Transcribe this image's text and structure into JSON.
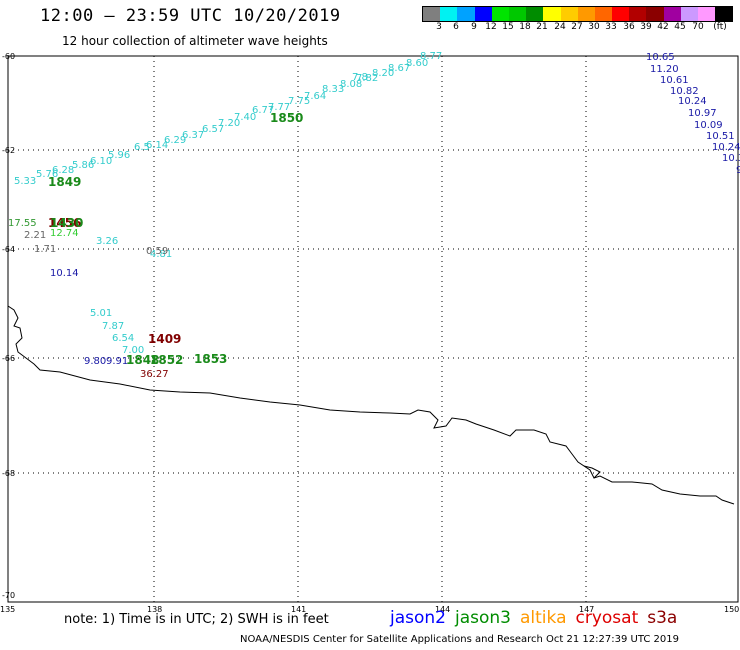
{
  "header": {
    "title": "12:00 – 23:59 UTC 10/20/2019",
    "subtitle": "12 hour collection of altimeter wave heights"
  },
  "colorbar": {
    "labels": [
      "3",
      "6",
      "9",
      "12",
      "15",
      "18",
      "21",
      "24",
      "27",
      "30",
      "33",
      "36",
      "39",
      "42",
      "45",
      "70",
      "(ft)"
    ],
    "colors": [
      "#7f7f7f",
      "#00f2f2",
      "#00a2ff",
      "#0000ff",
      "#00e400",
      "#00c800",
      "#008c00",
      "#ffff00",
      "#ffcc00",
      "#ff9900",
      "#ff6600",
      "#ff0000",
      "#b20000",
      "#8b0000",
      "#a000a0",
      "#cc99ff",
      "#ff99ff",
      "#000000"
    ]
  },
  "map": {
    "lat_ticks": [
      "-60",
      "-62",
      "-64",
      "-66",
      "-68",
      "-70"
    ],
    "lon_ticks": [
      "135",
      "138",
      "141",
      "144",
      "147",
      "150"
    ]
  },
  "observations": [
    {
      "text": "8.77",
      "color": "#33cccc"
    },
    {
      "text": "8.60",
      "color": "#33cccc"
    },
    {
      "text": "8.67",
      "color": "#33cccc"
    },
    {
      "text": "8.20",
      "color": "#33cccc"
    },
    {
      "text": "7.82",
      "color": "#33cccc"
    },
    {
      "text": "7.8",
      "color": "#33cccc"
    },
    {
      "text": "8.08",
      "color": "#33cccc"
    },
    {
      "text": "8.33",
      "color": "#33cccc"
    },
    {
      "text": "7.64",
      "color": "#33cccc"
    },
    {
      "text": "7.75",
      "color": "#33cccc"
    },
    {
      "text": "7.77",
      "color": "#33cccc"
    },
    {
      "text": "6.77",
      "color": "#33cccc"
    },
    {
      "text": "7.40",
      "color": "#33cccc"
    },
    {
      "text": "7.20",
      "color": "#33cccc"
    },
    {
      "text": "6.57",
      "color": "#33cccc"
    },
    {
      "text": "6.37",
      "color": "#33cccc"
    },
    {
      "text": "6.29",
      "color": "#33cccc"
    },
    {
      "text": "6.14",
      "color": "#33cccc"
    },
    {
      "text": "6.5",
      "color": "#33cccc"
    },
    {
      "text": "5.96",
      "color": "#33cccc"
    },
    {
      "text": "6.10",
      "color": "#33cccc"
    },
    {
      "text": "5.86",
      "color": "#33cccc"
    },
    {
      "text": "6.28",
      "color": "#33cccc"
    },
    {
      "text": "5.76",
      "color": "#33cccc"
    },
    {
      "text": "5.33",
      "color": "#33cccc"
    },
    {
      "text": "3.26",
      "color": "#33cccc"
    },
    {
      "text": "5.01",
      "color": "#33cccc"
    },
    {
      "text": "7.87",
      "color": "#33cccc"
    },
    {
      "text": "6.54",
      "color": "#33cccc"
    },
    {
      "text": "7.00",
      "color": "#33cccc"
    },
    {
      "text": "4.81",
      "color": "#33cccc"
    },
    {
      "text": "10.65",
      "color": "#1a1aa6"
    },
    {
      "text": "11.20",
      "color": "#1a1aa6"
    },
    {
      "text": "10.61",
      "color": "#1a1aa6"
    },
    {
      "text": "10.82",
      "color": "#1a1aa6"
    },
    {
      "text": "10.24",
      "color": "#1a1aa6"
    },
    {
      "text": "10.97",
      "color": "#1a1aa6"
    },
    {
      "text": "10.09",
      "color": "#1a1aa6"
    },
    {
      "text": "10.51",
      "color": "#1a1aa6"
    },
    {
      "text": "10.24",
      "color": "#1a1aa6"
    },
    {
      "text": "10.3",
      "color": "#1a1aa6"
    },
    {
      "text": "9",
      "color": "#1a1aa6"
    },
    {
      "text": "10.14",
      "color": "#1a1aa6"
    },
    {
      "text": "9.80",
      "color": "#1a1aa6"
    },
    {
      "text": "9.91",
      "color": "#1a1aa6"
    },
    {
      "text": "17.55",
      "color": "#339933"
    },
    {
      "text": "12.74",
      "color": "#33cc33"
    },
    {
      "text": "2.21",
      "color": "#666666"
    },
    {
      "text": "1.71",
      "color": "#666666"
    },
    {
      "text": "0.59",
      "color": "#666666"
    },
    {
      "text": "36.27",
      "color": "#800000"
    }
  ],
  "pass_times": [
    {
      "text": "1850",
      "color": "#1a8a1a"
    },
    {
      "text": "1849",
      "color": "#1a8a1a"
    },
    {
      "text": "1456",
      "color": "#800000"
    },
    {
      "text": "1430",
      "color": "#1a8a1a"
    },
    {
      "text": "1409",
      "color": "#800000"
    },
    {
      "text": "1853",
      "color": "#1a8a1a"
    },
    {
      "text": "1852",
      "color": "#1a8a1a"
    },
    {
      "text": "1848",
      "color": "#1a8a1a"
    }
  ],
  "footer": {
    "note": "note: 1) Time is in UTC; 2) SWH is in feet",
    "credit": "NOAA/NESDIS Center for Satellite Applications and Research     Oct 21 12:27:39 UTC 2019",
    "satellites": [
      {
        "name": "jason2",
        "color": "#0000ff"
      },
      {
        "name": "jason3",
        "color": "#008c00"
      },
      {
        "name": "altika",
        "color": "#ff9900"
      },
      {
        "name": "cryosat",
        "color": "#dd0000"
      },
      {
        "name": "s3a",
        "color": "#8b0000"
      }
    ]
  }
}
